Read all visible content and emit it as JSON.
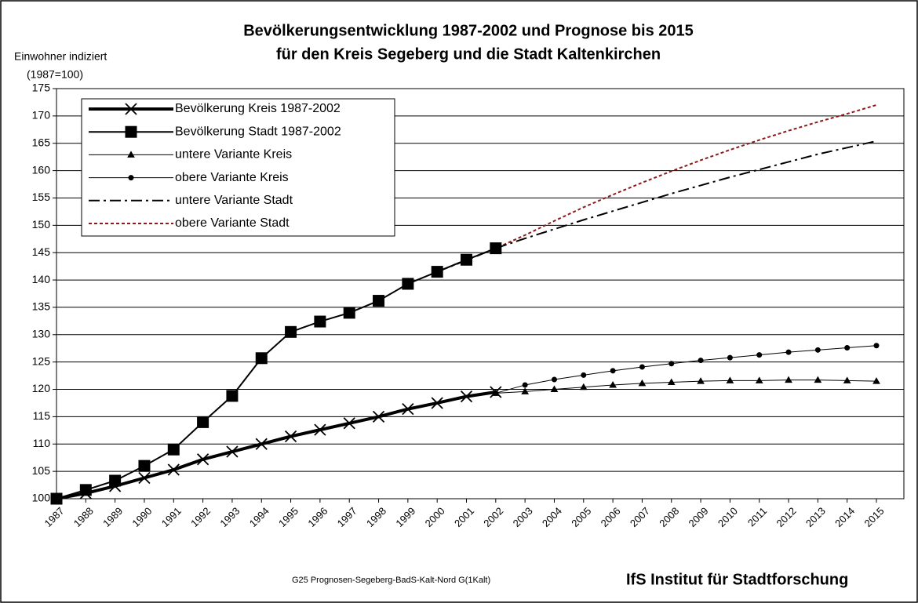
{
  "chart_data": {
    "type": "line",
    "title": [
      "Bevölkerungsentwicklung 1987-2002 und Prognose bis 2015",
      "für den Kreis Segeberg und die Stadt Kaltenkirchen"
    ],
    "y_axis_label": [
      "Einwohner indiziert",
      "(1987=100)"
    ],
    "footnote": "G25 Prognosen-Segeberg-BadS-Kalt-Nord  G(1Kalt)",
    "source": "IfS Institut für Stadtforschung",
    "categories": [
      "1987",
      "1988",
      "1989",
      "1990",
      "1991",
      "1992",
      "1993",
      "1994",
      "1995",
      "1996",
      "1997",
      "1998",
      "1999",
      "2000",
      "2001",
      "2002",
      "2003",
      "2004",
      "2005",
      "2006",
      "2007",
      "2008",
      "2009",
      "2010",
      "2011",
      "2012",
      "2013",
      "2014",
      "2015"
    ],
    "ylim": [
      100,
      175
    ],
    "yticks": [
      100,
      105,
      110,
      115,
      120,
      125,
      130,
      135,
      140,
      145,
      150,
      155,
      160,
      165,
      170,
      175
    ],
    "grid": true,
    "legend": "upper left",
    "series": [
      {
        "name": "Bevölkerung Kreis 1987-2002",
        "color": "#000000",
        "marker": "x",
        "dash": "solid",
        "values": [
          100,
          101,
          102.3,
          103.8,
          105.3,
          107.2,
          108.6,
          110,
          111.4,
          112.6,
          113.8,
          115,
          116.4,
          117.5,
          118.7,
          119.5,
          null,
          null,
          null,
          null,
          null,
          null,
          null,
          null,
          null,
          null,
          null,
          null,
          null
        ]
      },
      {
        "name": "Bevölkerung Stadt 1987-2002",
        "color": "#000000",
        "marker": "square",
        "dash": "solid",
        "values": [
          100,
          101.6,
          103.3,
          106,
          109,
          114,
          118.8,
          125.7,
          130.5,
          132.4,
          134,
          136.2,
          139.3,
          141.5,
          143.7,
          145.8,
          null,
          null,
          null,
          null,
          null,
          null,
          null,
          null,
          null,
          null,
          null,
          null,
          null
        ]
      },
      {
        "name": "untere Variante Kreis",
        "color": "#000000",
        "marker": "triangle",
        "dash": "solid",
        "values": [
          null,
          null,
          null,
          null,
          null,
          null,
          null,
          null,
          null,
          null,
          null,
          null,
          null,
          null,
          null,
          119.3,
          119.6,
          120,
          120.4,
          120.8,
          121.1,
          121.3,
          121.5,
          121.6,
          121.6,
          121.7,
          121.7,
          121.6,
          121.5
        ]
      },
      {
        "name": "obere Variante Kreis",
        "color": "#000000",
        "marker": "circle",
        "dash": "solid",
        "values": [
          null,
          null,
          null,
          null,
          null,
          null,
          null,
          null,
          null,
          null,
          null,
          null,
          null,
          null,
          null,
          119.3,
          120.8,
          121.8,
          122.6,
          123.4,
          124.1,
          124.7,
          125.3,
          125.8,
          126.3,
          126.8,
          127.2,
          127.6,
          128
        ]
      },
      {
        "name": "untere Variante Stadt",
        "color": "#000000",
        "marker": "none",
        "dash": "dashdot",
        "values": [
          null,
          null,
          null,
          null,
          null,
          null,
          null,
          null,
          null,
          null,
          null,
          null,
          null,
          141.5,
          143.6,
          145.8,
          147.6,
          149.3,
          151,
          152.6,
          154.2,
          155.8,
          157.3,
          158.8,
          160.2,
          161.6,
          163,
          164.2,
          165.4
        ]
      },
      {
        "name": "obere Variante Stadt",
        "color": "#8b1a1a",
        "marker": "none",
        "dash": "dotted",
        "values": [
          null,
          null,
          null,
          null,
          null,
          null,
          null,
          null,
          null,
          null,
          null,
          null,
          null,
          141.5,
          143.7,
          145.8,
          148.2,
          150.8,
          153.3,
          155.6,
          157.8,
          159.9,
          161.9,
          163.8,
          165.6,
          167.3,
          168.9,
          170.4,
          172
        ]
      }
    ]
  }
}
